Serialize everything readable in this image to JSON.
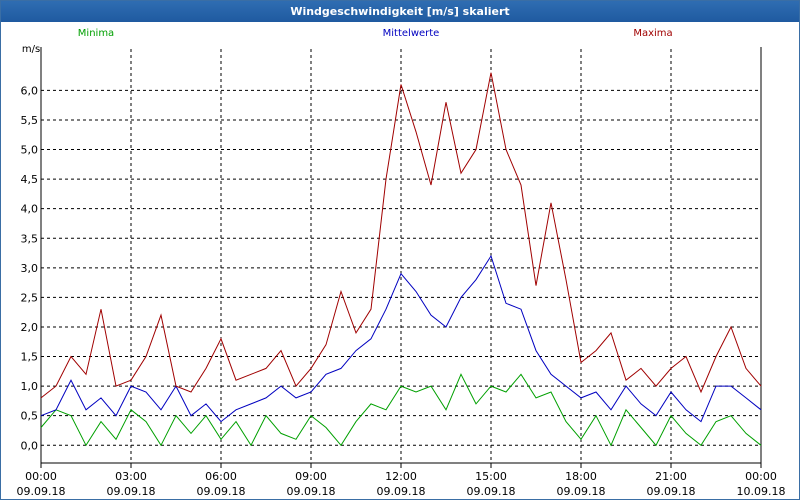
{
  "window": {
    "title": "Windgeschwindigkeit [m/s] skaliert"
  },
  "chart_data": {
    "type": "line",
    "title": "Windgeschwindigkeit [m/s] skaliert",
    "ylabel": "m/s",
    "xlabel": "",
    "ylim": [
      -0.3,
      6.7
    ],
    "xlim": [
      0,
      24
    ],
    "grid": true,
    "legend_placement": "top",
    "y_ticks": [
      "0,0",
      "0,5",
      "1,0",
      "1,5",
      "2,0",
      "2,5",
      "3,0",
      "3,5",
      "4,0",
      "4,5",
      "5,0",
      "5,5",
      "6,0"
    ],
    "y_tick_values": [
      0,
      0.5,
      1,
      1.5,
      2,
      2.5,
      3,
      3.5,
      4,
      4.5,
      5,
      5.5,
      6
    ],
    "x_ticks": [
      {
        "time": "00:00",
        "date": "09.09.18"
      },
      {
        "time": "03:00",
        "date": "09.09.18"
      },
      {
        "time": "06:00",
        "date": "09.09.18"
      },
      {
        "time": "09:00",
        "date": "09.09.18"
      },
      {
        "time": "12:00",
        "date": "09.09.18"
      },
      {
        "time": "15:00",
        "date": "09.09.18"
      },
      {
        "time": "18:00",
        "date": "09.09.18"
      },
      {
        "time": "21:00",
        "date": "09.09.18"
      },
      {
        "time": "00:00",
        "date": "10.09.18"
      }
    ],
    "series": [
      {
        "name": "Minima",
        "color": "#00a000",
        "x": [
          0,
          0.5,
          1,
          1.5,
          2,
          2.5,
          3,
          3.5,
          4,
          4.5,
          5,
          5.5,
          6,
          6.5,
          7,
          7.5,
          8,
          8.5,
          9,
          9.5,
          10,
          10.5,
          11,
          11.5,
          12,
          12.5,
          13,
          13.5,
          14,
          14.5,
          15,
          15.5,
          16,
          16.5,
          17,
          17.5,
          18,
          18.5,
          19,
          19.5,
          20,
          20.5,
          21,
          21.5,
          22,
          22.5,
          23,
          23.5,
          24
        ],
        "values": [
          0.3,
          0.6,
          0.5,
          0.0,
          0.4,
          0.1,
          0.6,
          0.4,
          0.0,
          0.5,
          0.2,
          0.5,
          0.1,
          0.4,
          0.0,
          0.5,
          0.2,
          0.1,
          0.5,
          0.3,
          0.0,
          0.4,
          0.7,
          0.6,
          1.0,
          0.9,
          1.0,
          0.6,
          1.2,
          0.7,
          1.0,
          0.9,
          1.2,
          0.8,
          0.9,
          0.4,
          0.1,
          0.5,
          0.0,
          0.6,
          0.3,
          0.0,
          0.5,
          0.2,
          0.0,
          0.4,
          0.5,
          0.2,
          0.0
        ]
      },
      {
        "name": "Mittelwerte",
        "color": "#0000c0",
        "x": [
          0,
          0.5,
          1,
          1.5,
          2,
          2.5,
          3,
          3.5,
          4,
          4.5,
          5,
          5.5,
          6,
          6.5,
          7,
          7.5,
          8,
          8.5,
          9,
          9.5,
          10,
          10.5,
          11,
          11.5,
          12,
          12.5,
          13,
          13.5,
          14,
          14.5,
          15,
          15.5,
          16,
          16.5,
          17,
          17.5,
          18,
          18.5,
          19,
          19.5,
          20,
          20.5,
          21,
          21.5,
          22,
          22.5,
          23,
          23.5,
          24
        ],
        "values": [
          0.5,
          0.6,
          1.1,
          0.6,
          0.8,
          0.5,
          1.0,
          0.9,
          0.6,
          1.0,
          0.5,
          0.7,
          0.4,
          0.6,
          0.7,
          0.8,
          1.0,
          0.8,
          0.9,
          1.2,
          1.3,
          1.6,
          1.8,
          2.3,
          2.9,
          2.6,
          2.2,
          2.0,
          2.5,
          2.8,
          3.2,
          2.4,
          2.3,
          1.6,
          1.2,
          1.0,
          0.8,
          0.9,
          0.6,
          1.0,
          0.7,
          0.5,
          0.9,
          0.6,
          0.4,
          1.0,
          1.0,
          0.8,
          0.6
        ]
      },
      {
        "name": "Maxima",
        "color": "#a00000",
        "x": [
          0,
          0.5,
          1,
          1.5,
          2,
          2.5,
          3,
          3.5,
          4,
          4.5,
          5,
          5.5,
          6,
          6.5,
          7,
          7.5,
          8,
          8.5,
          9,
          9.5,
          10,
          10.5,
          11,
          11.5,
          12,
          12.5,
          13,
          13.5,
          14,
          14.5,
          15,
          15.5,
          16,
          16.5,
          17,
          17.5,
          18,
          18.5,
          19,
          19.5,
          20,
          20.5,
          21,
          21.5,
          22,
          22.5,
          23,
          23.5,
          24
        ],
        "values": [
          0.8,
          1.0,
          1.5,
          1.2,
          2.3,
          1.0,
          1.1,
          1.5,
          2.2,
          1.0,
          0.9,
          1.3,
          1.8,
          1.1,
          1.2,
          1.3,
          1.6,
          1.0,
          1.3,
          1.7,
          2.6,
          1.9,
          2.3,
          4.5,
          6.1,
          5.3,
          4.4,
          5.8,
          4.6,
          5.0,
          6.3,
          5.0,
          4.4,
          2.7,
          4.1,
          2.8,
          1.4,
          1.6,
          1.9,
          1.1,
          1.3,
          1.0,
          1.3,
          1.5,
          0.9,
          1.5,
          2.0,
          1.3,
          1.0
        ]
      }
    ]
  }
}
